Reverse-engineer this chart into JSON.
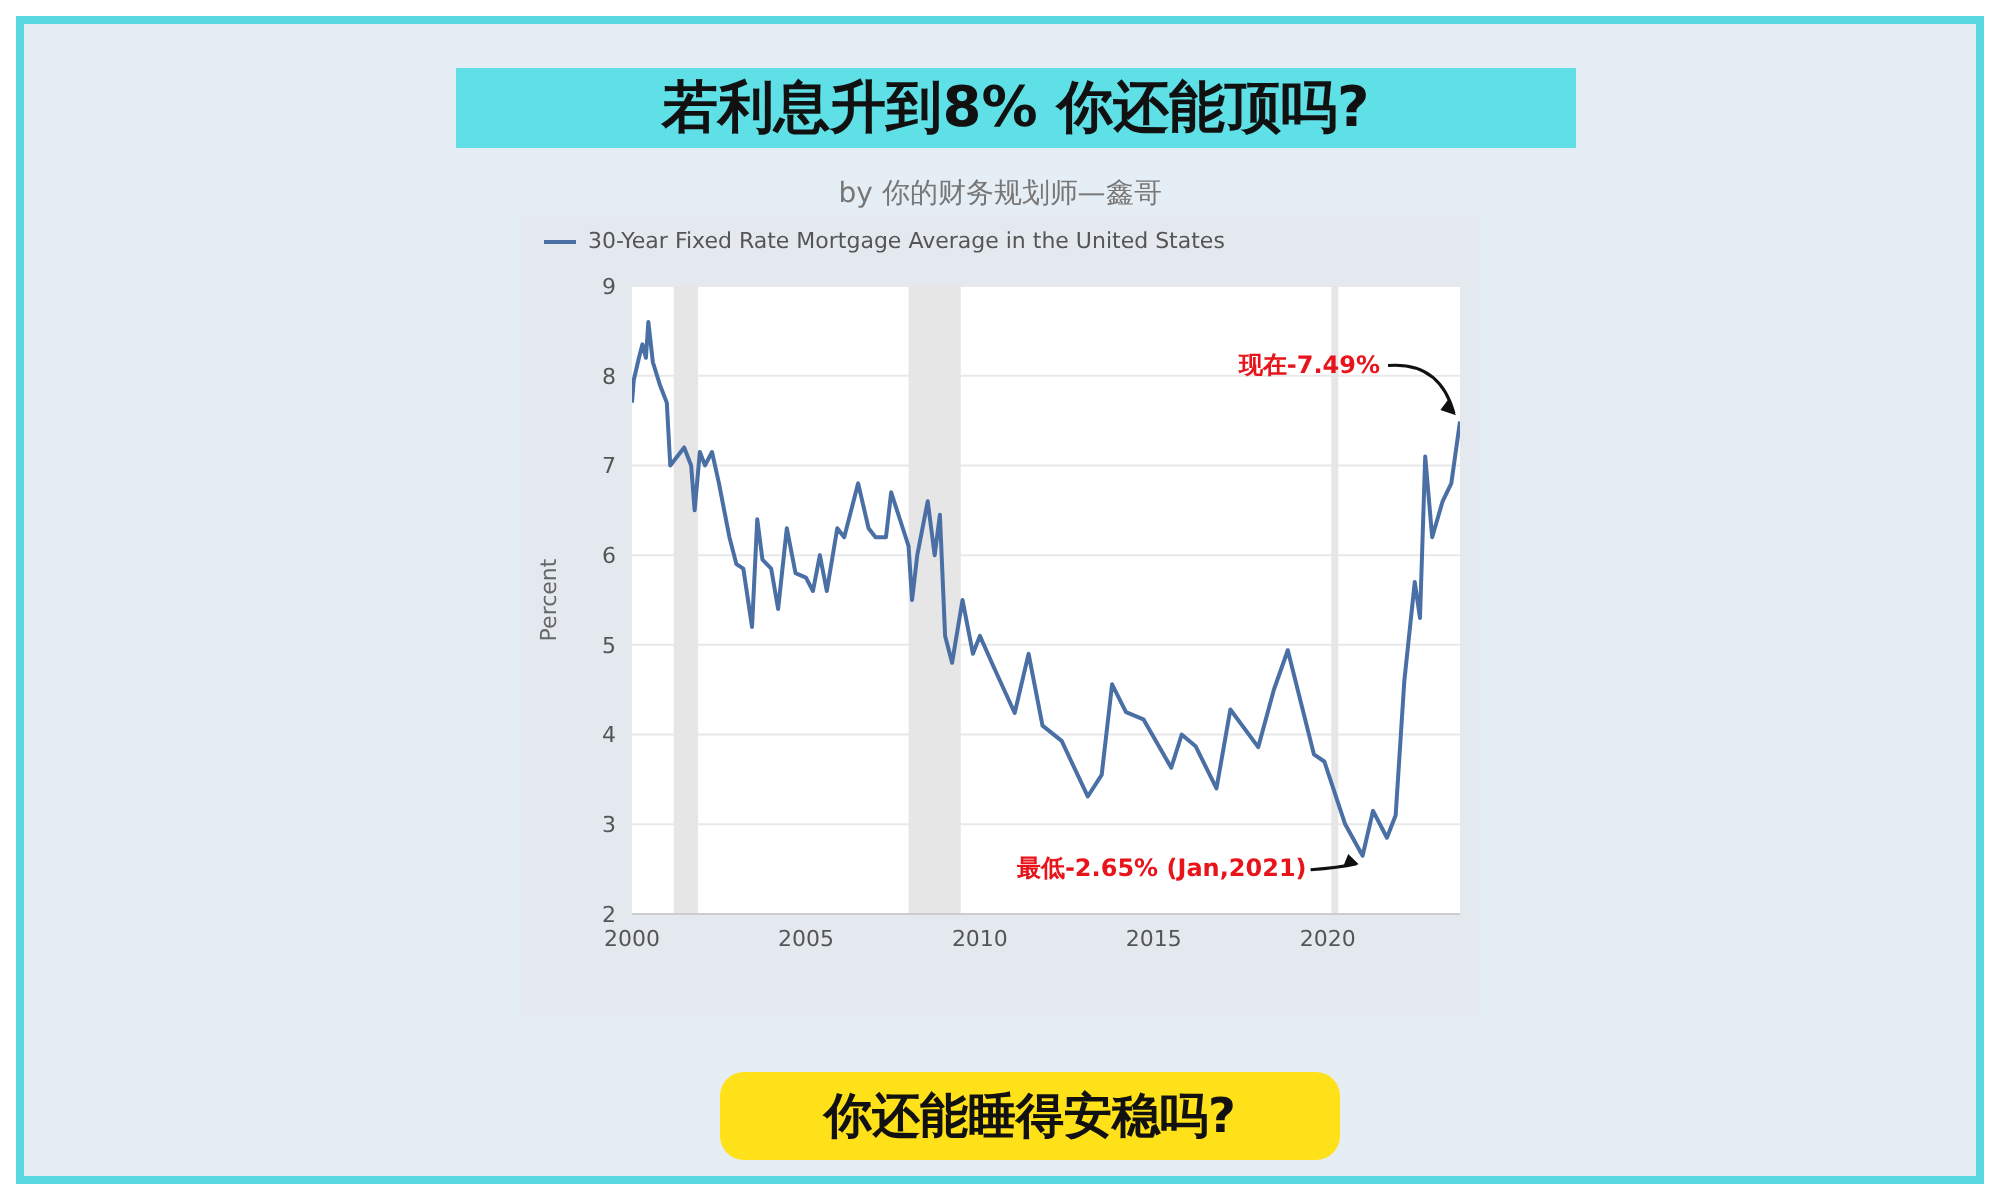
{
  "chart_data": {
    "type": "line",
    "title": "若利息升到8% 你还能顶吗?",
    "subtitle": "by 你的财务规划师—鑫哥",
    "ylabel": "Percent",
    "legend": "top left",
    "grid": "y",
    "xlim": [
      2000,
      2023.8
    ],
    "xticks": [
      2000,
      2005,
      2010,
      2015,
      2020
    ],
    "ylim": [
      2,
      9
    ],
    "yticks": [
      2,
      3,
      4,
      5,
      6,
      7,
      8,
      9
    ],
    "bands": [
      {
        "axis": "x",
        "from": 2001.2,
        "to": 2001.9,
        "color": "#e6e6e6"
      },
      {
        "axis": "x",
        "from": 2007.95,
        "to": 2009.45,
        "color": "#e6e6e6"
      },
      {
        "axis": "x",
        "from": 2020.1,
        "to": 2020.3,
        "color": "#e6e6e6"
      }
    ],
    "annotations": [
      {
        "text": "现在-7.49%",
        "x": 2023.8,
        "y": 7.49
      },
      {
        "text": "最低-2.65% (Jan,2021)",
        "x": 2021.0,
        "y": 2.65
      },
      "你还能睡得安稳吗?"
    ],
    "series": [
      {
        "name": "30-Year Fixed Rate Mortgage Average in the United States",
        "color": "#4a6fa5",
        "x": [
          2000.0,
          2000.05,
          2000.2,
          2000.3,
          2000.4,
          2000.47,
          2000.6,
          2000.8,
          2001.0,
          2001.1,
          2001.3,
          2001.5,
          2001.7,
          2001.8,
          2001.95,
          2002.1,
          2002.3,
          2002.5,
          2002.8,
          2003.0,
          2003.2,
          2003.45,
          2003.6,
          2003.75,
          2004.0,
          2004.2,
          2004.45,
          2004.7,
          2005.0,
          2005.2,
          2005.4,
          2005.6,
          2005.9,
          2006.1,
          2006.5,
          2006.8,
          2007.0,
          2007.3,
          2007.45,
          2007.7,
          2007.95,
          2008.05,
          2008.2,
          2008.5,
          2008.7,
          2008.85,
          2009.0,
          2009.2,
          2009.5,
          2009.8,
          2010.0,
          2010.4,
          2011.0,
          2011.4,
          2011.8,
          2012.35,
          2013.1,
          2013.5,
          2013.8,
          2014.2,
          2014.7,
          2015.5,
          2015.8,
          2016.2,
          2016.8,
          2017.2,
          2018.0,
          2018.45,
          2018.85,
          2019.6,
          2019.9,
          2020.5,
          2021.0,
          2021.3,
          2021.7,
          2021.95,
          2022.2,
          2022.5,
          2022.65,
          2022.8,
          2023.0,
          2023.3,
          2023.55,
          2023.8
        ],
        "values": [
          7.7,
          7.95,
          8.2,
          8.35,
          8.2,
          8.6,
          8.15,
          7.9,
          7.7,
          7.0,
          7.1,
          7.2,
          7.0,
          6.5,
          7.15,
          7.0,
          7.15,
          6.8,
          6.2,
          5.9,
          5.85,
          5.2,
          6.4,
          5.95,
          5.85,
          5.4,
          6.3,
          5.8,
          5.75,
          5.6,
          6.0,
          5.6,
          6.3,
          6.2,
          6.8,
          6.3,
          6.2,
          6.2,
          6.7,
          6.4,
          6.1,
          5.5,
          6.0,
          6.6,
          6.0,
          6.45,
          5.1,
          4.8,
          5.5,
          4.9,
          5.1,
          4.75,
          4.24,
          4.9,
          4.1,
          3.93,
          3.31,
          3.55,
          4.56,
          4.25,
          4.17,
          3.63,
          4.0,
          3.87,
          3.4,
          4.28,
          3.86,
          4.5,
          4.94,
          3.78,
          3.7,
          3.0,
          2.65,
          3.15,
          2.85,
          3.1,
          4.6,
          5.7,
          5.3,
          7.1,
          6.2,
          6.6,
          6.8,
          7.49
        ]
      }
    ]
  }
}
